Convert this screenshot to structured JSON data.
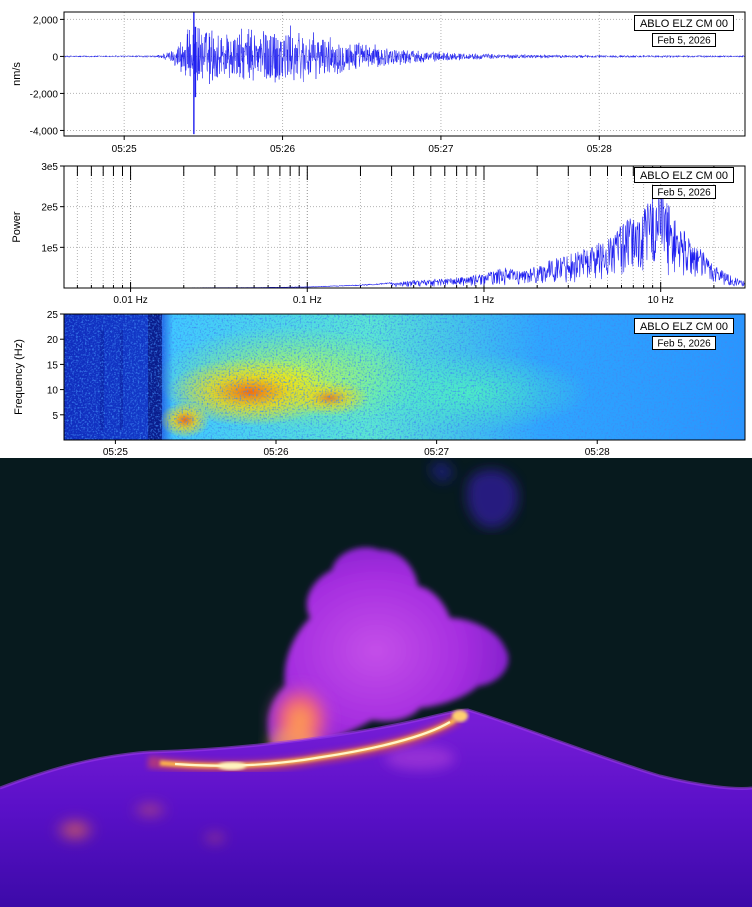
{
  "colors": {
    "trace": "#1e1ef0",
    "grid": "#b4b4b4",
    "night_sky": "#071a1e"
  },
  "chart_data": [
    {
      "type": "line",
      "subtype": "seismogram",
      "station_label": "ABLO ELZ CM 00",
      "date_label": "Feb 5, 2026",
      "ylabel": "nm/s",
      "xlabel": "",
      "x_ticks": [
        "05:25",
        "05:26",
        "05:27",
        "05:28"
      ],
      "x_tick_minutes": [
        25,
        26,
        27,
        28
      ],
      "xlim_minutes": [
        24.62,
        28.92
      ],
      "y_ticks": [
        "2,000",
        "0",
        "-2,000",
        "-4,000"
      ],
      "y_tick_values": [
        2000,
        0,
        -2000,
        -4000
      ],
      "ylim": [
        -4300,
        2400
      ],
      "grid": true,
      "envelope": {
        "x_minutes": [
          24.62,
          25.2,
          25.3,
          25.4,
          25.5,
          25.6,
          25.7,
          25.8,
          25.9,
          26.0,
          26.1,
          26.2,
          26.3,
          26.4,
          26.5,
          26.6,
          26.7,
          26.8,
          26.9,
          27.0,
          27.2,
          27.4,
          27.6,
          27.8,
          28.0,
          28.2,
          28.4,
          28.6,
          28.92
        ],
        "amplitude_nm_s": [
          50,
          60,
          350,
          1500,
          1800,
          1500,
          1450,
          1650,
          1750,
          1800,
          1600,
          1300,
          1100,
          950,
          800,
          650,
          520,
          420,
          330,
          260,
          180,
          140,
          110,
          95,
          85,
          75,
          70,
          65,
          60
        ]
      },
      "spikes": [
        {
          "x_minutes": 25.44,
          "min": -4200,
          "max": 2400
        },
        {
          "x_minutes": 25.45,
          "min": -2200,
          "max": 1600
        }
      ]
    },
    {
      "type": "line",
      "subtype": "power-spectrum",
      "station_label": "ABLO ELZ CM 00",
      "date_label": "Feb 5, 2026",
      "ylabel": "Power",
      "xlabel": "",
      "x_scale": "log",
      "xlim_hz": [
        0.0042,
        30
      ],
      "x_ticks": [
        "0.01 Hz",
        "0.1 Hz",
        "1 Hz",
        "10 Hz"
      ],
      "x_tick_values": [
        0.01,
        0.1,
        1,
        10
      ],
      "y_ticks": [
        "3e5",
        "2e5",
        "1e5"
      ],
      "y_tick_values": [
        300000,
        200000,
        100000
      ],
      "ylim": [
        0,
        300000
      ],
      "grid": true,
      "envelope": {
        "freq_hz": [
          0.0042,
          0.02,
          0.05,
          0.1,
          0.2,
          0.3,
          0.5,
          0.7,
          1.0,
          1.3,
          1.6,
          2.0,
          2.6,
          3.2,
          4.0,
          5.0,
          6.0,
          7.0,
          8.0,
          9.0,
          10.0,
          12.0,
          15.0,
          20.0,
          25.0,
          30.0
        ],
        "power": [
          400,
          600,
          1200,
          3000,
          8000,
          14000,
          22000,
          25000,
          35000,
          50000,
          42000,
          55000,
          75000,
          90000,
          105000,
          120000,
          160000,
          175000,
          190000,
          240000,
          260000,
          170000,
          120000,
          60000,
          30000,
          15000
        ]
      }
    },
    {
      "type": "heatmap",
      "subtype": "spectrogram",
      "station_label": "ABLO ELZ CM 00",
      "date_label": "Feb 5, 2026",
      "ylabel": "Frequency (Hz)",
      "xlabel": "",
      "x_ticks": [
        "05:25",
        "05:26",
        "05:27",
        "05:28"
      ],
      "x_tick_minutes": [
        25,
        26,
        27,
        28
      ],
      "xlim_minutes": [
        24.68,
        28.92
      ],
      "y_ticks": [
        "25",
        "20",
        "15",
        "10",
        "5"
      ],
      "y_tick_values": [
        25,
        20,
        15,
        10,
        5
      ],
      "ylim": [
        0,
        25
      ],
      "colormap": "jet",
      "grid": false
    }
  ],
  "thermal_image": {
    "subject": "thermal camera view of an erupting volcano summit at night"
  }
}
